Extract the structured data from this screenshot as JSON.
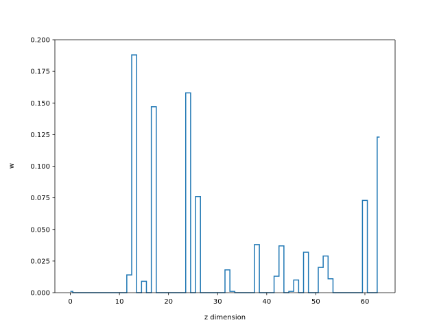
{
  "chart_data": {
    "type": "step",
    "title": "",
    "xlabel": "z dimension",
    "ylabel": "w",
    "xlim": [
      -3.15,
      66.15
    ],
    "ylim": [
      0,
      0.2
    ],
    "x_ticks": [
      0,
      10,
      20,
      30,
      40,
      50,
      60
    ],
    "x_tick_labels": [
      "0",
      "10",
      "20",
      "30",
      "40",
      "50",
      "60"
    ],
    "y_ticks": [
      0,
      0.025,
      0.05,
      0.075,
      0.1,
      0.125,
      0.15,
      0.175,
      0.2
    ],
    "y_tick_labels": [
      "0.000",
      "0.025",
      "0.050",
      "0.075",
      "0.100",
      "0.125",
      "0.150",
      "0.175",
      "0.200"
    ],
    "grid": false,
    "step_where": "mid",
    "series": [
      {
        "color": "#1f77b4",
        "x": [
          0,
          1,
          2,
          3,
          4,
          5,
          6,
          7,
          8,
          9,
          10,
          11,
          12,
          13,
          14,
          15,
          16,
          17,
          18,
          19,
          20,
          21,
          22,
          23,
          24,
          25,
          26,
          27,
          28,
          29,
          30,
          31,
          32,
          33,
          34,
          35,
          36,
          37,
          38,
          39,
          40,
          41,
          42,
          43,
          44,
          45,
          46,
          47,
          48,
          49,
          50,
          51,
          52,
          53,
          54,
          55,
          56,
          57,
          58,
          59,
          60,
          61,
          62,
          63
        ],
        "values": [
          0.001,
          0,
          0,
          0,
          0,
          0,
          0,
          0,
          0,
          0,
          0,
          0,
          0.014,
          0.188,
          0,
          0.009,
          0,
          0.147,
          0,
          0,
          0,
          0,
          0,
          0,
          0.158,
          0,
          0.076,
          0,
          0,
          0,
          0,
          0,
          0.018,
          0.001,
          0,
          0,
          0,
          0,
          0.038,
          0,
          0,
          0,
          0.013,
          0.037,
          0,
          0.001,
          0.01,
          0,
          0.032,
          0,
          0,
          0.02,
          0.029,
          0.011,
          0,
          0,
          0,
          0,
          0,
          0,
          0.073,
          0,
          0,
          0.123
        ]
      }
    ]
  }
}
